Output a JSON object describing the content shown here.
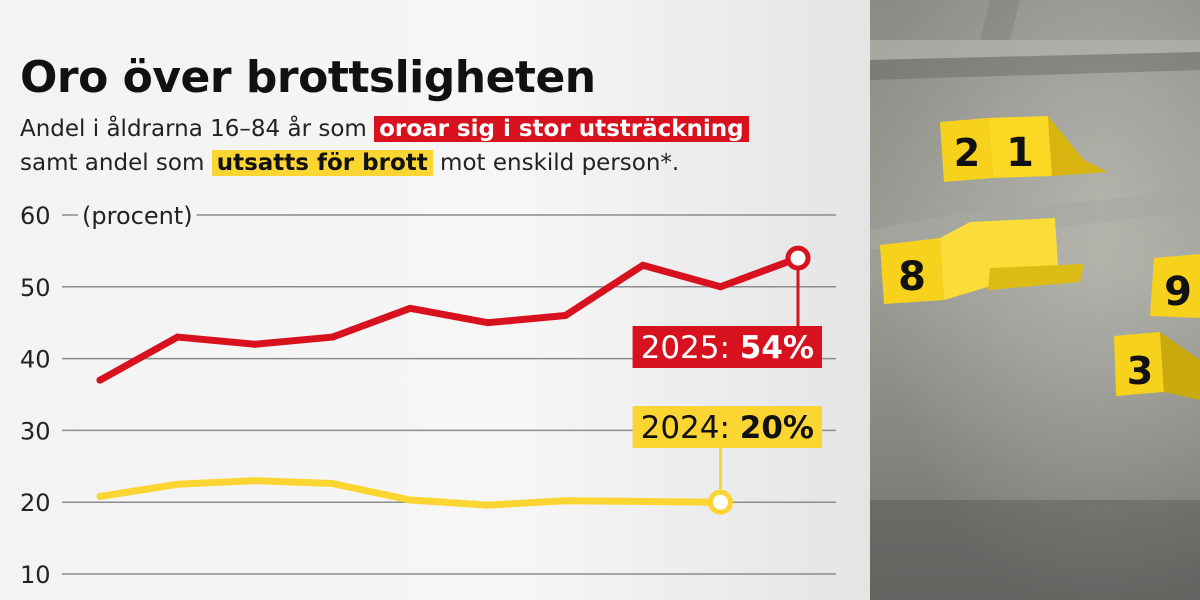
{
  "title": "Oro över brottsligheten",
  "subtitle": {
    "line1_prefix": "Andel i åldrarna 16–84 år som ",
    "line1_highlight": "oroar sig i stor utsträckning",
    "line2_prefix": "samt andel som ",
    "line2_highlight": "utsatts för brott",
    "line2_suffix": " mot enskild person*."
  },
  "colors": {
    "worry": "#d7121e",
    "victim": "#fbd532",
    "text": "#111111",
    "grid": "#8c8c8c"
  },
  "chart_data": {
    "type": "line",
    "ylabel": "(procent)",
    "ylim": [
      10,
      60
    ],
    "yticks": [
      10,
      20,
      30,
      40,
      50,
      60
    ],
    "grid": true,
    "series": [
      {
        "key": "worry",
        "values": [
          37,
          43,
          42,
          43,
          47,
          45,
          46,
          53,
          50,
          54
        ],
        "callout": {
          "year_label": "2025:",
          "value_label": "54%"
        }
      },
      {
        "key": "victim",
        "values": [
          20.8,
          22.5,
          23,
          22.6,
          20.3,
          19.6,
          20.2,
          20.1,
          20
        ],
        "callout": {
          "year_label": "2024:",
          "value_label": "20%"
        }
      }
    ]
  },
  "photo": {
    "markers": [
      "2",
      "1",
      "8",
      "9",
      "3"
    ]
  }
}
